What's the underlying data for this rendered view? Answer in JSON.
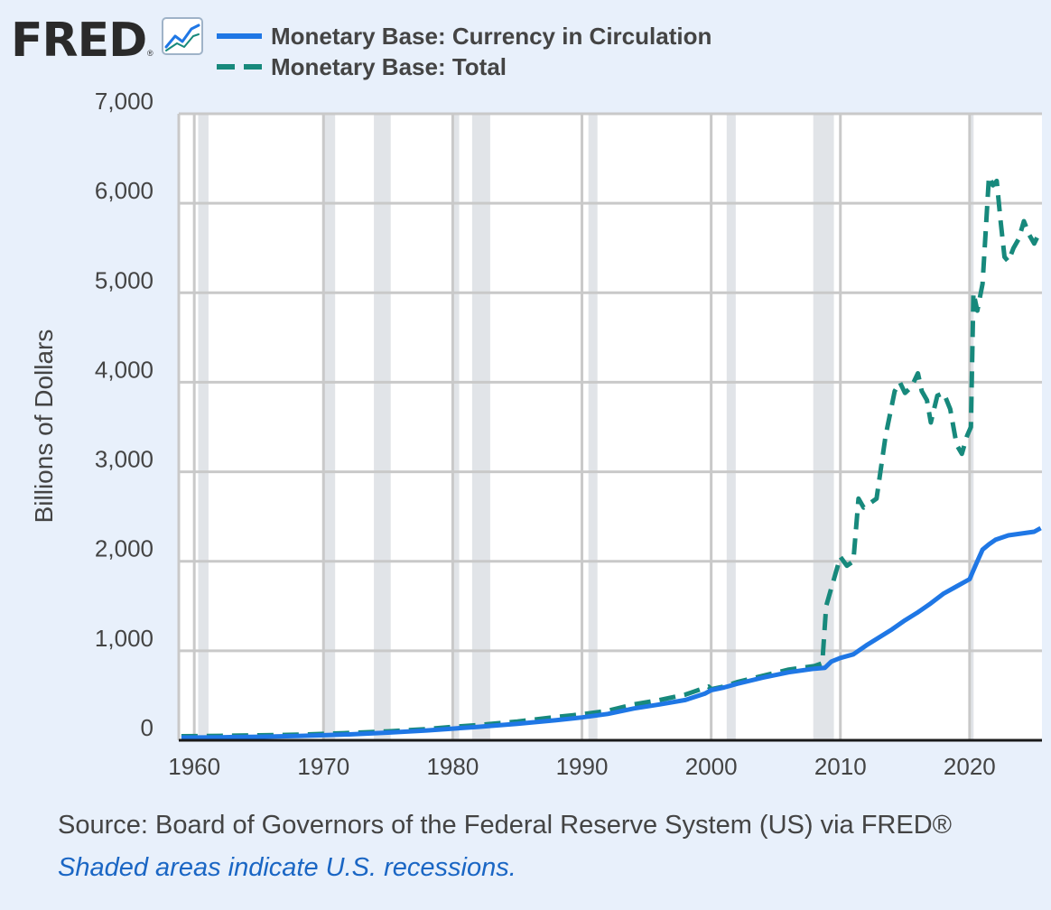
{
  "header": {
    "logo_text": "FRED",
    "logo_mark": "®",
    "logo_icon": "trend-chart-icon"
  },
  "colors": {
    "background": "#e8f0fb",
    "plot_background": "#ffffff",
    "recession": "#e1e4e8",
    "gridline": "#c9c9c9",
    "currency": "#1f77e5",
    "total": "#17897c",
    "text": "#444444",
    "note": "#1a66c4"
  },
  "footer": {
    "source": "Source: Board of Governors of the Federal Reserve System (US) via FRED®",
    "note": "Shaded areas indicate U.S. recessions."
  },
  "chart_data": {
    "type": "line",
    "title": "",
    "xlabel": "",
    "ylabel": "Billions of Dollars",
    "xlim": [
      1958.8,
      2025.6
    ],
    "ylim": [
      0,
      7000
    ],
    "yticks": [
      0,
      1000,
      2000,
      3000,
      4000,
      5000,
      6000,
      7000
    ],
    "ytick_labels": [
      "0",
      "1,000",
      "2,000",
      "3,000",
      "4,000",
      "5,000",
      "6,000",
      "7,000"
    ],
    "xticks": [
      1960,
      1970,
      1980,
      1990,
      2000,
      2010,
      2020
    ],
    "xtick_labels": [
      "1960",
      "1970",
      "1980",
      "1990",
      "2000",
      "2010",
      "2020"
    ],
    "grid": true,
    "legend_position": "top-left",
    "recessions": [
      [
        1960.3,
        1961.1
      ],
      [
        1969.9,
        1970.9
      ],
      [
        1973.9,
        1975.2
      ],
      [
        1980.0,
        1980.5
      ],
      [
        1981.5,
        1982.9
      ],
      [
        1990.5,
        1991.2
      ],
      [
        2001.2,
        2001.9
      ],
      [
        2007.9,
        2009.5
      ],
      [
        2020.1,
        2020.3
      ]
    ],
    "series": [
      {
        "name": "Monetary Base: Currency in Circulation",
        "style": "solid",
        "x": [
          1959,
          1962,
          1965,
          1968,
          1970,
          1972,
          1975,
          1978,
          1980,
          1982,
          1985,
          1988,
          1990,
          1992,
          1994,
          1996,
          1998,
          1999.5,
          2000,
          2001,
          2002,
          2004,
          2006,
          2008,
          2008.8,
          2009.3,
          2010,
          2011,
          2012,
          2013,
          2014,
          2015,
          2016,
          2017,
          2018,
          2019,
          2020,
          2020.3,
          2020.6,
          2021,
          2021.5,
          2022,
          2023,
          2024,
          2025,
          2025.5
        ],
        "values": [
          30,
          33,
          39,
          48,
          56,
          66,
          86,
          110,
          130,
          150,
          185,
          225,
          255,
          295,
          355,
          400,
          450,
          520,
          560,
          590,
          630,
          700,
          760,
          800,
          810,
          880,
          920,
          960,
          1060,
          1150,
          1240,
          1340,
          1430,
          1530,
          1640,
          1720,
          1800,
          1900,
          2000,
          2130,
          2190,
          2240,
          2290,
          2310,
          2330,
          2370
        ]
      },
      {
        "name": "Monetary Base: Total",
        "style": "dashed",
        "x": [
          1959,
          1962,
          1965,
          1968,
          1970,
          1972,
          1975,
          1978,
          1980,
          1982,
          1985,
          1988,
          1990,
          1992,
          1994,
          1996,
          1998,
          1999.8,
          2000,
          2001,
          2002,
          2004,
          2006,
          2008,
          2008.6,
          2008.9,
          2009.3,
          2010,
          2010.5,
          2011,
          2011.4,
          2011.8,
          2012.3,
          2012.8,
          2013.5,
          2014.2,
          2014.6,
          2015,
          2015.5,
          2016,
          2016.3,
          2016.7,
          2017,
          2017.5,
          2018,
          2018.5,
          2019,
          2019.4,
          2019.8,
          2020.1,
          2020.3,
          2020.6,
          2021,
          2021.5,
          2021.8,
          2022.1,
          2022.4,
          2022.7,
          2023,
          2023.4,
          2023.8,
          2024.2,
          2024.6,
          2025,
          2025.5
        ],
        "values": [
          45,
          49,
          55,
          63,
          72,
          82,
          100,
          125,
          150,
          170,
          210,
          260,
          290,
          330,
          400,
          450,
          510,
          600,
          570,
          600,
          650,
          720,
          790,
          830,
          860,
          1500,
          1700,
          2050,
          1950,
          2000,
          2700,
          2600,
          2650,
          2700,
          3400,
          3900,
          4000,
          3880,
          3950,
          4100,
          3900,
          3800,
          3550,
          3850,
          3880,
          3700,
          3300,
          3200,
          3400,
          3500,
          5000,
          4800,
          5100,
          6300,
          6200,
          6250,
          5800,
          5400,
          5350,
          5500,
          5600,
          5800,
          5650,
          5550,
          5700
        ]
      }
    ]
  }
}
